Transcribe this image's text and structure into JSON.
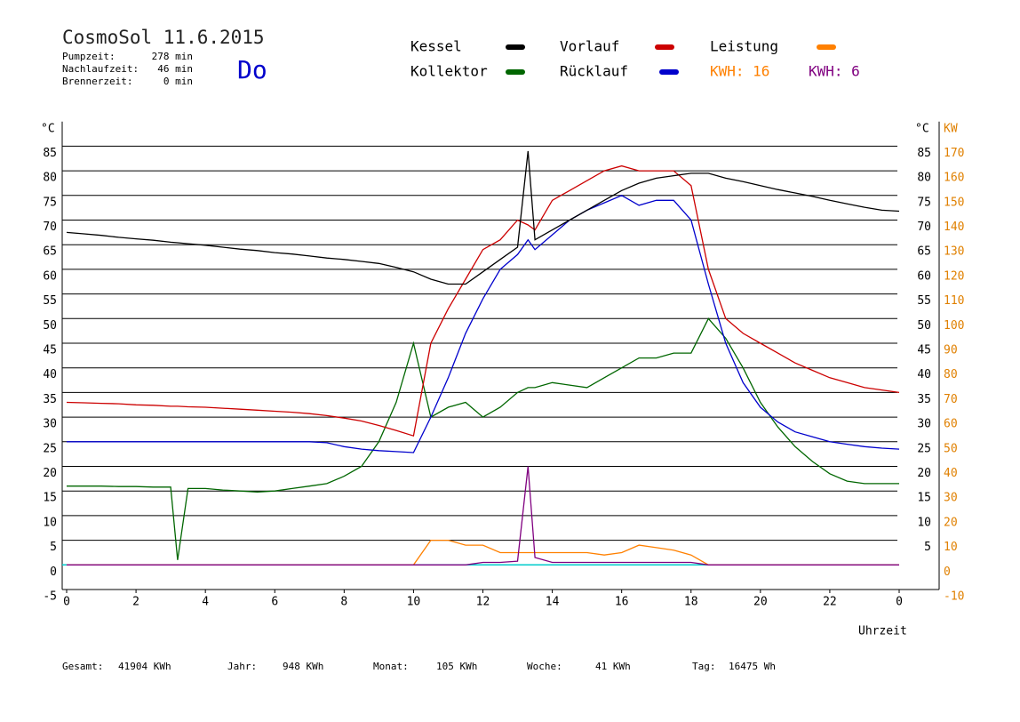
{
  "chart_data": {
    "type": "line",
    "title": "CosmoSol 11.6.2015",
    "day": "Do",
    "info": [
      {
        "label": "Pumpzeit:",
        "value": "278 min"
      },
      {
        "label": "Nachlaufzeit:",
        "value": "46 min"
      },
      {
        "label": "Brennerzeit:",
        "value": "0 min"
      }
    ],
    "y_unit": "°C",
    "y2_unit": "KW",
    "xlabel": "Uhrzeit",
    "xlim": [
      0,
      24
    ],
    "xticks": [
      0,
      2,
      4,
      6,
      8,
      10,
      12,
      14,
      16,
      18,
      20,
      22,
      {
        "value": 24,
        "label": "0"
      }
    ],
    "ylim": [
      -5,
      90
    ],
    "yticks": [
      -5,
      0,
      5,
      10,
      15,
      20,
      25,
      30,
      35,
      40,
      45,
      50,
      55,
      60,
      65,
      70,
      75,
      80,
      85
    ],
    "y_right_ticks": [
      5,
      10,
      15,
      20,
      25,
      30,
      35,
      40,
      45,
      50,
      55,
      60,
      65,
      70,
      75,
      80,
      85
    ],
    "y2lim": [
      -10,
      180
    ],
    "y2ticks": [
      -10,
      0,
      10,
      20,
      30,
      40,
      50,
      60,
      70,
      80,
      90,
      100,
      110,
      120,
      130,
      140,
      150,
      160,
      170
    ],
    "grid": true,
    "x": [
      0,
      0.5,
      1,
      1.5,
      2,
      2.5,
      3,
      3.2,
      3.5,
      4,
      4.5,
      5,
      5.5,
      6,
      6.5,
      7,
      7.5,
      8,
      8.5,
      9,
      9.5,
      10,
      10.5,
      11,
      11.5,
      12,
      12.5,
      13,
      13.3,
      13.5,
      14,
      14.5,
      15,
      15.5,
      16,
      16.5,
      17,
      17.5,
      18,
      18.5,
      19,
      19.5,
      20,
      20.5,
      21,
      21.5,
      22,
      22.5,
      23,
      23.5,
      24
    ],
    "series": [
      {
        "name": "Kessel",
        "color": "#000000",
        "values": [
          67.5,
          67.2,
          66.9,
          66.5,
          66.2,
          65.9,
          65.5,
          65.4,
          65.2,
          64.9,
          64.5,
          64.1,
          63.8,
          63.4,
          63.1,
          62.7,
          62.3,
          62,
          61.6,
          61.2,
          60.4,
          59.5,
          58,
          57,
          57,
          59.5,
          62,
          64.5,
          84,
          66,
          68,
          70,
          72,
          74,
          76,
          77.5,
          78.5,
          79,
          79.5,
          79.5,
          78.5,
          77.8,
          77,
          76.2,
          75.5,
          74.8,
          74,
          73.3,
          72.6,
          72,
          71.8
        ]
      },
      {
        "name": "Vorlauf",
        "color": "#cc0000",
        "values": [
          33,
          32.9,
          32.8,
          32.7,
          32.5,
          32.4,
          32.2,
          32.2,
          32.1,
          32,
          31.8,
          31.6,
          31.4,
          31.2,
          31,
          30.7,
          30.3,
          29.8,
          29.2,
          28.3,
          27.3,
          26.2,
          45,
          52,
          58,
          64,
          66,
          70,
          69,
          68,
          74,
          76,
          78,
          80,
          81,
          80,
          80,
          80,
          77,
          60,
          50,
          47,
          45,
          43,
          41,
          39.5,
          38,
          37,
          36,
          35.5,
          35
        ]
      },
      {
        "name": "Leistung",
        "color": "#ff8000",
        "axis": "y2",
        "total_label": "KWH: 16",
        "values": [
          0,
          0,
          0,
          0,
          0,
          0,
          0,
          0,
          0,
          0,
          0,
          0,
          0,
          0,
          0,
          0,
          0,
          0,
          0,
          0,
          0,
          0,
          10,
          10,
          8,
          8,
          5,
          5,
          5,
          5,
          5,
          5,
          5,
          4,
          5,
          8,
          7,
          6,
          4,
          0,
          0,
          0,
          0,
          0,
          0,
          0,
          0,
          0,
          0,
          0,
          0
        ]
      },
      {
        "name": "Kollektor",
        "color": "#006600",
        "values": [
          16,
          16,
          16,
          15.9,
          15.9,
          15.8,
          15.8,
          1,
          15.5,
          15.5,
          15.2,
          15,
          14.8,
          15,
          15.5,
          16,
          16.5,
          18,
          20,
          25,
          33,
          45,
          30,
          32,
          33,
          30,
          32,
          35,
          36,
          36,
          37,
          36.5,
          36,
          38,
          40,
          42,
          42,
          43,
          43,
          50,
          46,
          40,
          33,
          28,
          24,
          21,
          18.5,
          17,
          16.5,
          16.5,
          16.5
        ]
      },
      {
        "name": "Rücklauf",
        "color": "#0000cc",
        "values": [
          25,
          25,
          25,
          25,
          25,
          25,
          25,
          25,
          25,
          25,
          25,
          25,
          25,
          25,
          25,
          25,
          24.8,
          24,
          23.5,
          23.2,
          23,
          22.8,
          30,
          38,
          47,
          54,
          60,
          63,
          66,
          64,
          67,
          70,
          72,
          73.5,
          75,
          73,
          74,
          74,
          70,
          57,
          45,
          37,
          32,
          29,
          27,
          26,
          25,
          24.5,
          24,
          23.7,
          23.5
        ]
      },
      {
        "name": "KWH: 6",
        "color": "#800080",
        "axis": "y2",
        "values": [
          0,
          0,
          0,
          0,
          0,
          0,
          0,
          0,
          0,
          0,
          0,
          0,
          0,
          0,
          0,
          0,
          0,
          0,
          0,
          0,
          0,
          0,
          0,
          0,
          0,
          1,
          1,
          1.5,
          40,
          3,
          1,
          1,
          1,
          1,
          1,
          1,
          1,
          1,
          1,
          0,
          0,
          0,
          0,
          0,
          0,
          0,
          0,
          0,
          0,
          0,
          0
        ]
      }
    ],
    "footer": [
      {
        "label": "Gesamt:",
        "value": "41904 KWh"
      },
      {
        "label": "Jahr:",
        "value": "948 KWh"
      },
      {
        "label": "Monat:",
        "value": "105 KWh"
      },
      {
        "label": "Woche:",
        "value": "41 KWh"
      },
      {
        "label": "Tag:",
        "value": "16475 Wh"
      }
    ]
  }
}
